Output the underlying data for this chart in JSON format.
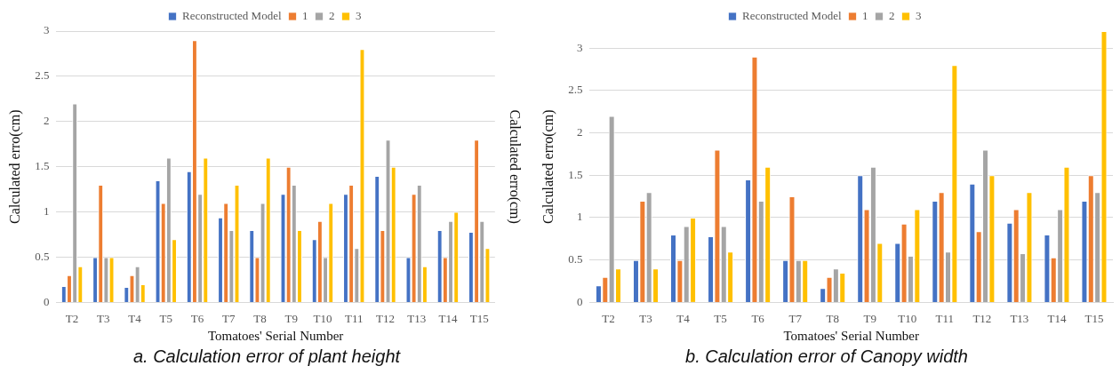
{
  "chart_data": [
    {
      "type": "bar",
      "xlabel": "Tomatoes' Serial Number",
      "ylabel": "Calculated erro(cm)",
      "y2label": "Calculated erro(cm)",
      "annotations": [
        "a. Calculation error of plant height"
      ],
      "categories": [
        "T2",
        "T3",
        "T4",
        "T5",
        "T6",
        "T7",
        "T8",
        "T9",
        "T10",
        "T11",
        "T12",
        "T13",
        "T14",
        "T15"
      ],
      "series": [
        {
          "name": "Reconstructed Model",
          "color": "#4472c4",
          "values": [
            0.18,
            0.5,
            0.17,
            1.35,
            1.45,
            0.94,
            0.8,
            1.2,
            0.7,
            1.2,
            1.4,
            0.5,
            0.8,
            0.78
          ]
        },
        {
          "name": "1",
          "color": "#ed7d31",
          "values": [
            0.3,
            1.3,
            0.3,
            1.1,
            2.9,
            1.1,
            0.5,
            1.5,
            0.9,
            1.3,
            0.8,
            1.2,
            0.5,
            1.8
          ]
        },
        {
          "name": "2",
          "color": "#a5a5a5",
          "values": [
            2.2,
            0.5,
            0.4,
            1.6,
            1.2,
            0.8,
            1.1,
            1.3,
            0.5,
            0.6,
            1.8,
            1.3,
            0.9,
            0.9
          ]
        },
        {
          "name": "3",
          "color": "#ffc000",
          "values": [
            0.4,
            0.5,
            0.2,
            0.7,
            1.6,
            1.3,
            1.6,
            0.8,
            1.1,
            2.8,
            1.5,
            0.4,
            1.0,
            0.6
          ]
        }
      ],
      "ylim": [
        0,
        3
      ],
      "yticks": [
        0,
        0.5,
        1,
        1.5,
        2,
        2.5,
        3
      ],
      "grid": "y",
      "legend": "top"
    },
    {
      "type": "bar",
      "xlabel": "Tomatoes' Serial Number",
      "ylabel": "Calculated erro(cm)",
      "annotations": [
        "b. Calculation error of Canopy width"
      ],
      "categories": [
        "T2",
        "T3",
        "T4",
        "T5",
        "T6",
        "T7",
        "T8",
        "T9",
        "T10",
        "T11",
        "T12",
        "T13",
        "T14",
        "T15"
      ],
      "series": [
        {
          "name": "Reconstructed Model",
          "color": "#4472c4",
          "values": [
            0.2,
            0.5,
            0.8,
            0.78,
            1.45,
            0.5,
            0.17,
            1.5,
            0.7,
            1.2,
            1.4,
            0.94,
            0.8,
            1.2
          ]
        },
        {
          "name": "1",
          "color": "#ed7d31",
          "values": [
            0.3,
            1.2,
            0.5,
            1.8,
            2.9,
            1.25,
            0.3,
            1.1,
            0.93,
            1.3,
            0.84,
            1.1,
            0.53,
            1.5
          ]
        },
        {
          "name": "2",
          "color": "#a5a5a5",
          "values": [
            2.2,
            1.3,
            0.9,
            0.9,
            1.2,
            0.5,
            0.4,
            1.6,
            0.55,
            0.6,
            1.8,
            0.58,
            1.1,
            1.3
          ]
        },
        {
          "name": "3",
          "color": "#ffc000",
          "values": [
            0.4,
            0.4,
            1.0,
            0.6,
            1.6,
            0.5,
            0.35,
            0.7,
            1.1,
            2.8,
            1.5,
            1.3,
            1.6,
            3.2
          ]
        }
      ],
      "ylim": [
        0,
        3.2
      ],
      "yticks": [
        0,
        0.5,
        1,
        1.5,
        2,
        2.5,
        3
      ],
      "grid": "y",
      "legend": "top"
    }
  ]
}
